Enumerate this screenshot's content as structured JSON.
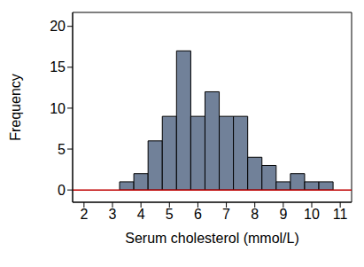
{
  "chart_data": {
    "type": "histogram",
    "x_label": "Serum cholesterol (mmol/L)",
    "y_label": "Frequency",
    "bins": [
      3.25,
      3.75,
      4.25,
      4.75,
      5.25,
      5.75,
      6.25,
      6.75,
      7.25,
      7.75,
      8.25,
      8.75,
      9.25,
      9.75,
      10.25,
      10.75
    ],
    "values": [
      1,
      2,
      6,
      9,
      17,
      9,
      12,
      9,
      9,
      4,
      3,
      1,
      2,
      1,
      1
    ],
    "color": "#718199",
    "xlim": [
      1.6,
      11.4
    ],
    "ylim": [
      -1.5,
      21.7
    ],
    "xticks": [
      2,
      3,
      4,
      5,
      6,
      7,
      8,
      9,
      10,
      11
    ],
    "yticks": [
      0,
      5,
      10,
      15,
      20
    ]
  }
}
